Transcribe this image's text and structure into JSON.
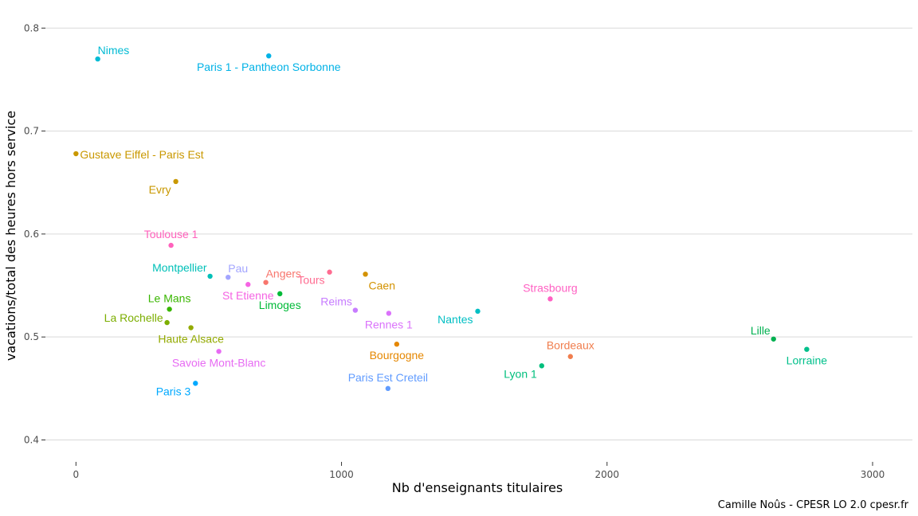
{
  "chart_data": {
    "type": "scatter",
    "xlabel": "Nb d'enseignants titulaires",
    "ylabel": "vacations/total des heures hors service",
    "xlim": [
      -115,
      3150
    ],
    "ylim": [
      0.388,
      0.818
    ],
    "xticks": [
      0,
      1000,
      2000,
      3000
    ],
    "yticks": [
      0.4,
      0.5,
      0.6,
      0.7,
      0.8
    ],
    "grid": "horizontal",
    "legend": "none",
    "caption": "Camille Noûs - CPESR LO 2.0 cpesr.fr",
    "points": [
      {
        "label": "Nimes",
        "x": 82,
        "y": 0.77,
        "color": "#00BBD4",
        "label_pos": "upper-right"
      },
      {
        "label": "Paris 1 - Pantheon Sorbonne",
        "x": 726,
        "y": 0.773,
        "color": "#00B2E6",
        "label_pos": "below"
      },
      {
        "label": "Gustave Eiffel - Paris Est",
        "x": 0,
        "y": 0.678,
        "color": "#C99800",
        "label_pos": "right"
      },
      {
        "label": "Evry",
        "x": 376,
        "y": 0.651,
        "color": "#C99800",
        "label_pos": "lower-left"
      },
      {
        "label": "Toulouse 1",
        "x": 358,
        "y": 0.589,
        "color": "#FF62BC",
        "label_pos": "above"
      },
      {
        "label": "Montpellier",
        "x": 505,
        "y": 0.559,
        "color": "#00C0B8",
        "label_pos": "upper-left"
      },
      {
        "label": "Pau",
        "x": 573,
        "y": 0.558,
        "color": "#A3A5FF",
        "label_pos": "upper-right"
      },
      {
        "label": "Angers",
        "x": 715,
        "y": 0.553,
        "color": "#F8766D",
        "label_pos": "upper-right"
      },
      {
        "label": "St Etienne",
        "x": 648,
        "y": 0.551,
        "color": "#F564E3",
        "label_pos": "below"
      },
      {
        "label": "Tours",
        "x": 955,
        "y": 0.563,
        "color": "#FF6C91",
        "label_pos": "lower-left"
      },
      {
        "label": "Caen",
        "x": 1090,
        "y": 0.561,
        "color": "#D39200",
        "label_pos": "lower-right"
      },
      {
        "label": "Limoges",
        "x": 768,
        "y": 0.542,
        "color": "#00BA38",
        "label_pos": "below"
      },
      {
        "label": "Le Mans",
        "x": 352,
        "y": 0.527,
        "color": "#39B600",
        "label_pos": "above"
      },
      {
        "label": "La Rochelle",
        "x": 343,
        "y": 0.514,
        "color": "#7CAE00",
        "label_pos": "left"
      },
      {
        "label": "Haute Alsace",
        "x": 433,
        "y": 0.509,
        "color": "#93AA00",
        "label_pos": "below"
      },
      {
        "label": "Reims",
        "x": 1052,
        "y": 0.526,
        "color": "#C77CFF",
        "label_pos": "upper-left"
      },
      {
        "label": "Rennes 1",
        "x": 1178,
        "y": 0.523,
        "color": "#DB72FB",
        "label_pos": "below"
      },
      {
        "label": "Nantes",
        "x": 1513,
        "y": 0.525,
        "color": "#00BFC4",
        "label_pos": "lower-left"
      },
      {
        "label": "Strasbourg",
        "x": 1786,
        "y": 0.537,
        "color": "#FF61C3",
        "label_pos": "above"
      },
      {
        "label": "Savoie Mont-Blanc",
        "x": 538,
        "y": 0.486,
        "color": "#E76BF3",
        "label_pos": "below"
      },
      {
        "label": "Bourgogne",
        "x": 1208,
        "y": 0.493,
        "color": "#E58700",
        "label_pos": "below"
      },
      {
        "label": "Paris 3",
        "x": 450,
        "y": 0.455,
        "color": "#00A9FF",
        "label_pos": "lower-left"
      },
      {
        "label": "Paris Est Creteil",
        "x": 1175,
        "y": 0.45,
        "color": "#619CFF",
        "label_pos": "above"
      },
      {
        "label": "Lyon 1",
        "x": 1754,
        "y": 0.472,
        "color": "#00BF7D",
        "label_pos": "lower-left"
      },
      {
        "label": "Bordeaux",
        "x": 1862,
        "y": 0.481,
        "color": "#F07E4E",
        "label_pos": "above"
      },
      {
        "label": "Lille",
        "x": 2627,
        "y": 0.498,
        "color": "#00B050",
        "label_pos": "upper-left"
      },
      {
        "label": "Lorraine",
        "x": 2752,
        "y": 0.488,
        "color": "#00C08B",
        "label_pos": "below"
      }
    ]
  }
}
